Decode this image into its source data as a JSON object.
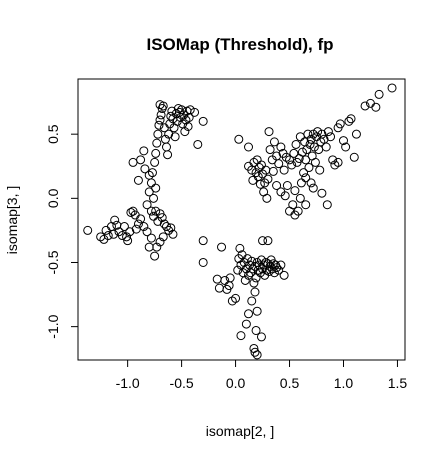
{
  "chart_data": {
    "type": "scatter",
    "title": "ISOMap (Threshold), fp",
    "xlabel": "isomap[2, ]",
    "ylabel": "isomap[3, ]",
    "xlim": [
      -1.46,
      1.57
    ],
    "ylim": [
      -1.26,
      0.93
    ],
    "x_ticks": [
      -1.0,
      -0.5,
      0.0,
      0.5,
      1.0,
      1.5
    ],
    "x_tick_labels": [
      "-1.0",
      "-0.5",
      "0.0",
      "0.5",
      "1.0",
      "1.5"
    ],
    "y_ticks": [
      -1.0,
      -0.5,
      0.0,
      0.5
    ],
    "y_tick_labels": [
      "-1.0",
      "-0.5",
      "0.0",
      "0.5"
    ],
    "grid": false,
    "marker": "open-circle",
    "series": [
      {
        "points": [
          [
            -1.37,
            -0.25
          ],
          [
            -1.25,
            -0.3
          ],
          [
            -1.22,
            -0.32
          ],
          [
            -1.2,
            -0.25
          ],
          [
            -1.18,
            -0.29
          ],
          [
            -1.15,
            -0.22
          ],
          [
            -1.13,
            -0.28
          ],
          [
            -1.12,
            -0.17
          ],
          [
            -1.1,
            -0.21
          ],
          [
            -1.08,
            -0.26
          ],
          [
            -1.05,
            -0.29
          ],
          [
            -1.03,
            -0.22
          ],
          [
            -1.01,
            -0.3
          ],
          [
            -1.0,
            -0.33
          ],
          [
            -0.98,
            -0.26
          ],
          [
            -0.97,
            -0.11
          ],
          [
            -0.95,
            -0.1
          ],
          [
            -0.93,
            -0.13
          ],
          [
            -0.92,
            -0.24
          ],
          [
            -0.9,
            -0.2
          ],
          [
            -0.88,
            -0.16
          ],
          [
            -0.85,
            -0.22
          ],
          [
            -0.82,
            -0.26
          ],
          [
            -0.8,
            -0.38
          ],
          [
            -0.78,
            -0.31
          ],
          [
            -0.76,
            -0.14
          ],
          [
            -0.74,
            -0.1
          ],
          [
            -0.72,
            -0.18
          ],
          [
            -0.7,
            -0.12
          ],
          [
            -0.68,
            -0.15
          ],
          [
            -0.66,
            -0.2
          ],
          [
            -0.64,
            -0.22
          ],
          [
            -0.62,
            -0.25
          ],
          [
            -0.6,
            -0.23
          ],
          [
            -0.58,
            -0.28
          ],
          [
            -0.75,
            -0.45
          ],
          [
            -0.73,
            -0.38
          ],
          [
            -0.7,
            -0.34
          ],
          [
            -0.67,
            -0.3
          ],
          [
            -0.82,
            -0.05
          ],
          [
            -0.8,
            0.05
          ],
          [
            -0.78,
            0.12
          ],
          [
            -0.77,
            0.2
          ],
          [
            -0.76,
            0.0
          ],
          [
            -0.75,
            0.28
          ],
          [
            -0.74,
            0.35
          ],
          [
            -0.73,
            0.43
          ],
          [
            -0.72,
            0.5
          ],
          [
            -0.71,
            0.57
          ],
          [
            -0.7,
            0.61
          ],
          [
            -0.69,
            0.65
          ],
          [
            -0.68,
            0.7
          ],
          [
            -0.67,
            0.72
          ],
          [
            -0.7,
            0.73
          ],
          [
            -0.66,
            0.55
          ],
          [
            -0.65,
            0.46
          ],
          [
            -0.64,
            0.4
          ],
          [
            -0.63,
            0.34
          ],
          [
            -0.62,
            0.5
          ],
          [
            -0.61,
            0.58
          ],
          [
            -0.6,
            0.64
          ],
          [
            -0.59,
            0.68
          ],
          [
            -0.58,
            0.62
          ],
          [
            -0.57,
            0.55
          ],
          [
            -0.56,
            0.48
          ],
          [
            -0.55,
            0.66
          ],
          [
            -0.54,
            0.6
          ],
          [
            -0.53,
            0.7
          ],
          [
            -0.52,
            0.67
          ],
          [
            -0.51,
            0.63
          ],
          [
            -0.5,
            0.69
          ],
          [
            -0.49,
            0.58
          ],
          [
            -0.48,
            0.65
          ],
          [
            -0.47,
            0.52
          ],
          [
            -0.46,
            0.61
          ],
          [
            -0.45,
            0.68
          ],
          [
            -0.44,
            0.56
          ],
          [
            -0.43,
            0.63
          ],
          [
            -0.42,
            0.69
          ],
          [
            -0.38,
            0.67
          ],
          [
            -0.3,
            0.6
          ],
          [
            -0.35,
            0.42
          ],
          [
            -0.88,
            0.3
          ],
          [
            -0.85,
            0.37
          ],
          [
            -0.95,
            0.28
          ],
          [
            -0.9,
            0.14
          ],
          [
            -0.84,
            0.23
          ],
          [
            -0.8,
            0.18
          ],
          [
            -0.78,
            -0.1
          ],
          [
            -0.74,
            0.08
          ],
          [
            -0.3,
            -0.33
          ],
          [
            -0.3,
            -0.5
          ],
          [
            -0.13,
            -0.38
          ],
          [
            -0.17,
            -0.63
          ],
          [
            -0.15,
            -0.7
          ],
          [
            -0.1,
            -0.64
          ],
          [
            -0.08,
            -0.71
          ],
          [
            -0.05,
            -0.62
          ],
          [
            -0.03,
            -0.8
          ],
          [
            0.0,
            -0.78
          ],
          [
            0.02,
            -0.56
          ],
          [
            0.03,
            -0.47
          ],
          [
            0.04,
            -0.39
          ],
          [
            0.05,
            -0.52
          ],
          [
            0.06,
            -0.44
          ],
          [
            0.07,
            -0.58
          ],
          [
            0.08,
            -0.5
          ],
          [
            0.09,
            -0.64
          ],
          [
            0.1,
            -0.55
          ],
          [
            0.11,
            -0.47
          ],
          [
            0.12,
            -0.6
          ],
          [
            0.13,
            -0.52
          ],
          [
            0.14,
            -0.58
          ],
          [
            0.15,
            -0.49
          ],
          [
            0.16,
            -0.55
          ],
          [
            0.17,
            -0.66
          ],
          [
            0.18,
            -0.53
          ],
          [
            0.19,
            -0.62
          ],
          [
            0.2,
            -0.5
          ],
          [
            0.21,
            -0.56
          ],
          [
            0.22,
            -0.52
          ],
          [
            0.23,
            -0.58
          ],
          [
            0.24,
            -0.48
          ],
          [
            0.25,
            -0.55
          ],
          [
            0.26,
            -0.52
          ],
          [
            0.27,
            -0.6
          ],
          [
            0.28,
            -0.5
          ],
          [
            0.29,
            -0.56
          ],
          [
            0.3,
            -0.51
          ],
          [
            0.31,
            -0.57
          ],
          [
            0.32,
            -0.53
          ],
          [
            0.33,
            -0.48
          ],
          [
            0.34,
            -0.55
          ],
          [
            0.35,
            -0.51
          ],
          [
            0.36,
            -0.58
          ],
          [
            0.37,
            -0.52
          ],
          [
            0.38,
            -0.54
          ],
          [
            0.4,
            -0.56
          ],
          [
            0.42,
            -0.52
          ],
          [
            0.45,
            -0.6
          ],
          [
            0.25,
            -0.33
          ],
          [
            0.3,
            -0.33
          ],
          [
            0.18,
            -0.73
          ],
          [
            0.15,
            -0.8
          ],
          [
            0.2,
            -0.88
          ],
          [
            0.12,
            -0.9
          ],
          [
            0.1,
            -0.98
          ],
          [
            0.05,
            -1.07
          ],
          [
            0.19,
            -1.03
          ],
          [
            0.24,
            -1.08
          ],
          [
            0.17,
            -1.17
          ],
          [
            0.2,
            -1.22
          ],
          [
            0.18,
            -1.2
          ],
          [
            -0.06,
            -0.68
          ],
          [
            0.03,
            0.46
          ],
          [
            0.12,
            0.4
          ],
          [
            0.12,
            0.25
          ],
          [
            0.15,
            0.22
          ],
          [
            0.16,
            0.14
          ],
          [
            0.17,
            0.28
          ],
          [
            0.19,
            0.2
          ],
          [
            0.2,
            0.3
          ],
          [
            0.21,
            0.17
          ],
          [
            0.22,
            0.24
          ],
          [
            0.23,
            0.11
          ],
          [
            0.24,
            0.26
          ],
          [
            0.25,
            0.19
          ],
          [
            0.26,
            0.05
          ],
          [
            0.27,
            0.12
          ],
          [
            0.28,
            0.22
          ],
          [
            0.29,
            0.0
          ],
          [
            0.3,
            0.15
          ],
          [
            0.31,
            0.52
          ],
          [
            0.32,
            0.38
          ],
          [
            0.34,
            0.3
          ],
          [
            0.35,
            0.21
          ],
          [
            0.36,
            0.44
          ],
          [
            0.38,
            0.33
          ],
          [
            0.4,
            0.27
          ],
          [
            0.42,
            0.4
          ],
          [
            0.44,
            0.35
          ],
          [
            0.45,
            0.22
          ],
          [
            0.46,
            0.02
          ],
          [
            0.47,
            0.32
          ],
          [
            0.48,
            0.1
          ],
          [
            0.5,
            0.3
          ],
          [
            0.52,
            0.26
          ],
          [
            0.53,
            -0.05
          ],
          [
            0.54,
            0.35
          ],
          [
            0.55,
            0.06
          ],
          [
            0.56,
            0.42
          ],
          [
            0.57,
            0.28
          ],
          [
            0.58,
            -0.1
          ],
          [
            0.59,
            0.31
          ],
          [
            0.6,
            0.48
          ],
          [
            0.61,
            0.12
          ],
          [
            0.62,
            0.36
          ],
          [
            0.63,
            0.2
          ],
          [
            0.64,
            0.44
          ],
          [
            0.65,
            0.3
          ],
          [
            0.66,
            0.38
          ],
          [
            0.67,
            0.5
          ],
          [
            0.68,
            0.24
          ],
          [
            0.69,
            0.42
          ],
          [
            0.7,
            0.46
          ],
          [
            0.71,
            0.33
          ],
          [
            0.72,
            0.5
          ],
          [
            0.73,
            0.4
          ],
          [
            0.74,
            0.28
          ],
          [
            0.75,
            0.48
          ],
          [
            0.76,
            0.52
          ],
          [
            0.77,
            0.38
          ],
          [
            0.78,
            0.22
          ],
          [
            0.79,
            0.44
          ],
          [
            0.8,
            0.5
          ],
          [
            0.82,
            0.46
          ],
          [
            0.84,
            0.4
          ],
          [
            0.86,
            0.52
          ],
          [
            0.88,
            0.48
          ],
          [
            0.9,
            0.3
          ],
          [
            0.92,
            0.26
          ],
          [
            0.95,
            0.55
          ],
          [
            0.97,
            0.58
          ],
          [
            1.0,
            0.45
          ],
          [
            1.02,
            0.4
          ],
          [
            1.05,
            0.6
          ],
          [
            1.07,
            0.62
          ],
          [
            1.1,
            0.32
          ],
          [
            1.12,
            0.5
          ],
          [
            1.2,
            0.72
          ],
          [
            1.25,
            0.74
          ],
          [
            1.3,
            0.71
          ],
          [
            1.33,
            0.81
          ],
          [
            1.45,
            0.86
          ],
          [
            0.6,
            0.0
          ],
          [
            0.65,
            -0.05
          ],
          [
            0.7,
            0.12
          ],
          [
            0.72,
            0.08
          ],
          [
            0.85,
            -0.05
          ],
          [
            0.8,
            0.04
          ],
          [
            0.95,
            0.28
          ],
          [
            0.55,
            -0.13
          ],
          [
            0.5,
            -0.1
          ],
          [
            0.65,
            0.16
          ],
          [
            0.38,
            0.1
          ],
          [
            0.42,
            0.05
          ]
        ]
      }
    ]
  }
}
